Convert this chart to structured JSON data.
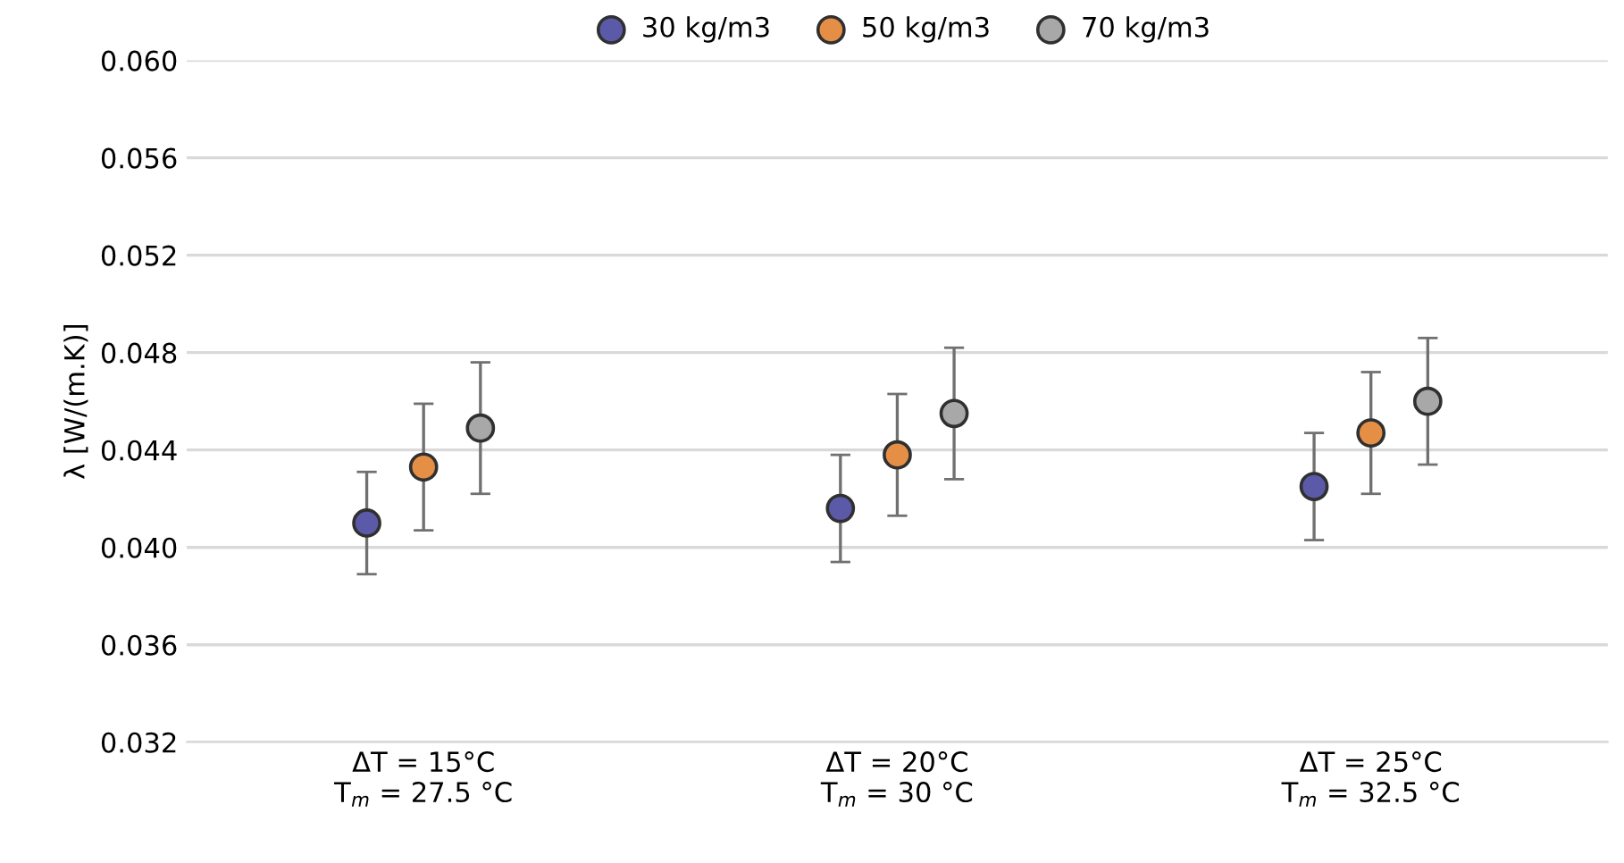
{
  "chart_data": {
    "type": "scatter",
    "ylabel": "λ [W/(m.K)]",
    "categories": [
      "ΔT = 15°C\nT$_{m}$ = 27.5 °C",
      "ΔT = 20°C\nT$_{m}$ = 30 °C",
      "ΔT = 25°C\nT$_{m}$ = 32.5 °C"
    ],
    "series": [
      {
        "name": "30 kg/m3",
        "color": "#5a5aa8",
        "values": [
          0.041,
          0.0416,
          0.0425
        ],
        "errors": [
          0.0021,
          0.0022,
          0.0022
        ]
      },
      {
        "name": "50 kg/m3",
        "color": "#e48f45",
        "values": [
          0.0433,
          0.0438,
          0.0447
        ],
        "errors": [
          0.0026,
          0.0025,
          0.0025
        ]
      },
      {
        "name": "70 kg/m3",
        "color": "#a8a8a8",
        "values": [
          0.0449,
          0.0455,
          0.046
        ],
        "errors": [
          0.0027,
          0.0027,
          0.0026
        ]
      }
    ],
    "ylim": [
      0.032,
      0.06
    ],
    "yticks": [
      {
        "value": 0.032,
        "label": "0.032"
      },
      {
        "value": 0.036,
        "label": "0.036"
      },
      {
        "value": 0.04,
        "label": "0.040"
      },
      {
        "value": 0.044,
        "label": "0.044"
      },
      {
        "value": 0.048,
        "label": "0.048"
      },
      {
        "value": 0.052,
        "label": "0.052"
      },
      {
        "value": 0.056,
        "label": "0.056"
      },
      {
        "value": 0.06,
        "label": "0.060"
      }
    ],
    "grid": "y",
    "legend": "top",
    "marker": "circle"
  }
}
